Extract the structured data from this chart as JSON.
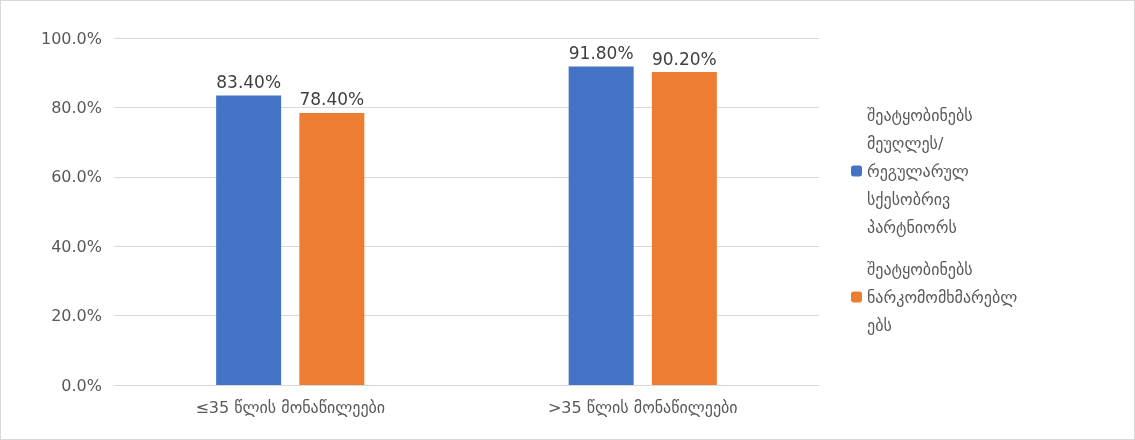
{
  "chart_data": {
    "type": "bar",
    "categories": [
      "≤35 წლის მონაწილეები",
      ">35 წლის მონაწილეები"
    ],
    "series": [
      {
        "name": "შეატყობინებს მეუღლეს/რეგულარულ სქესობრივ პარტნიორს",
        "color": "#4472c4",
        "values": [
          83.4,
          91.8
        ],
        "value_labels": [
          "83.40%",
          "91.80%"
        ]
      },
      {
        "name": "შეატყობინებს ნარკომომხმარებლებს",
        "color": "#ed7d31",
        "values": [
          78.4,
          90.2
        ],
        "value_labels": [
          "78.40%",
          "90.20%"
        ]
      }
    ],
    "ylim": [
      0,
      100
    ],
    "yticks": [
      {
        "value": 0,
        "label": "0.0%"
      },
      {
        "value": 20,
        "label": "20.0%"
      },
      {
        "value": 40,
        "label": "40.0%"
      },
      {
        "value": 60,
        "label": "60.0%"
      },
      {
        "value": 80,
        "label": "80.0%"
      },
      {
        "value": 100,
        "label": "100.0%"
      }
    ],
    "grid": "y",
    "legend": "right"
  }
}
